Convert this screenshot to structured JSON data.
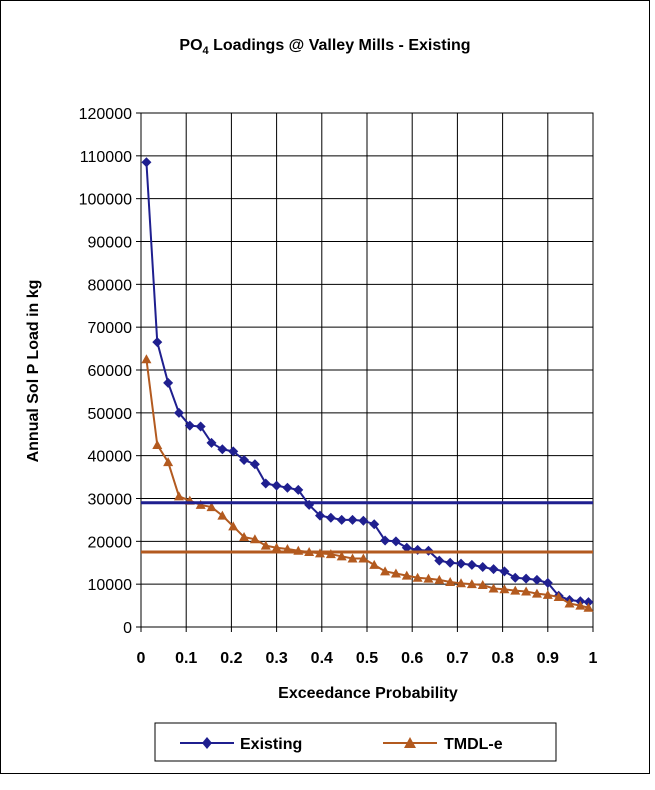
{
  "chart_data": {
    "type": "line",
    "title": {
      "main": "PO",
      "sub": "4",
      "rest": " Loadings @ Valley Mills - Existing"
    },
    "xlabel": "Exceedance Probability",
    "ylabel": "Annual Sol P Load in kg",
    "xlim": [
      0,
      1
    ],
    "ylim": [
      0,
      120000
    ],
    "xticks": [
      0,
      0.1,
      0.2,
      0.3,
      0.4,
      0.5,
      0.6,
      0.7,
      0.8,
      0.9,
      1
    ],
    "xtick_labels": [
      "0",
      "0.1",
      "0.2",
      "0.3",
      "0.4",
      "0.5",
      "0.6",
      "0.7",
      "0.8",
      "0.9",
      "1"
    ],
    "yticks": [
      0,
      10000,
      20000,
      30000,
      40000,
      50000,
      60000,
      70000,
      80000,
      90000,
      100000,
      110000,
      120000
    ],
    "ytick_labels": [
      "0",
      "10000",
      "20000",
      "30000",
      "40000",
      "50000",
      "60000",
      "70000",
      "80000",
      "90000",
      "100000",
      "110000",
      "120000"
    ],
    "grid": true,
    "legend_position": "bottom",
    "series": [
      {
        "name": "Existing",
        "color": "#1f1f8f",
        "marker": "diamond",
        "x": [
          0.012,
          0.036,
          0.06,
          0.084,
          0.108,
          0.132,
          0.156,
          0.18,
          0.204,
          0.228,
          0.252,
          0.276,
          0.3,
          0.324,
          0.348,
          0.372,
          0.396,
          0.42,
          0.444,
          0.468,
          0.492,
          0.516,
          0.54,
          0.564,
          0.588,
          0.612,
          0.636,
          0.66,
          0.684,
          0.708,
          0.732,
          0.756,
          0.78,
          0.804,
          0.828,
          0.852,
          0.876,
          0.9,
          0.924,
          0.948,
          0.972,
          0.99
        ],
        "y": [
          108500,
          66500,
          57000,
          50000,
          47000,
          46800,
          43000,
          41500,
          41000,
          39000,
          38000,
          33500,
          33000,
          32500,
          32000,
          28500,
          26000,
          25500,
          25000,
          25000,
          24800,
          24000,
          20200,
          20000,
          18500,
          18000,
          17800,
          15500,
          15000,
          14800,
          14500,
          14000,
          13500,
          13000,
          11500,
          11300,
          11000,
          10300,
          7300,
          6300,
          6000,
          5800
        ]
      },
      {
        "name": "TMDL-e",
        "color": "#b35a1f",
        "marker": "triangle",
        "x": [
          0.012,
          0.036,
          0.06,
          0.084,
          0.108,
          0.132,
          0.156,
          0.18,
          0.204,
          0.228,
          0.252,
          0.276,
          0.3,
          0.324,
          0.348,
          0.372,
          0.396,
          0.42,
          0.444,
          0.468,
          0.492,
          0.516,
          0.54,
          0.564,
          0.588,
          0.612,
          0.636,
          0.66,
          0.684,
          0.708,
          0.732,
          0.756,
          0.78,
          0.804,
          0.828,
          0.852,
          0.876,
          0.9,
          0.924,
          0.948,
          0.972,
          0.99
        ],
        "y": [
          62500,
          42500,
          38500,
          30500,
          29500,
          28500,
          28000,
          26000,
          23500,
          21000,
          20500,
          19000,
          18500,
          18200,
          17800,
          17500,
          17200,
          17000,
          16500,
          16000,
          16000,
          14500,
          13000,
          12500,
          12000,
          11500,
          11300,
          11000,
          10500,
          10200,
          10000,
          9800,
          9000,
          8800,
          8500,
          8300,
          7800,
          7500,
          7000,
          5500,
          5000,
          4500
        ]
      },
      {
        "name": "",
        "color": "#1f1f8f",
        "marker": "none",
        "x": [
          0,
          1
        ],
        "y": [
          29000,
          29000
        ]
      },
      {
        "name": "",
        "color": "#b35a1f",
        "marker": "none",
        "x": [
          0,
          1
        ],
        "y": [
          17500,
          17500
        ]
      }
    ]
  }
}
